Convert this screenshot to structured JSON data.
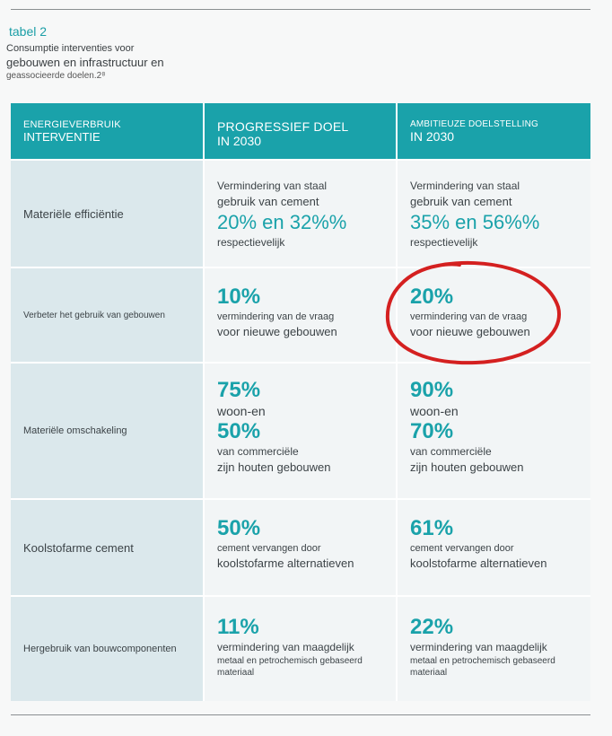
{
  "table_label": "tabel 2",
  "caption": {
    "line1": "Consumptie interventies voor",
    "line2": "gebouwen en infrastructuur en",
    "line3": "geassocieerde doelen.2⁸"
  },
  "header": {
    "col1_line1": "ENERGIEVERBRUIK",
    "col1_line2": "INTERVENTIE",
    "col2_line1": "PROGRESSIEF DOEL",
    "col2_line2": "IN 2030",
    "col3_line1": "AMBITIEUZE DOELSTELLING",
    "col3_line2": "IN 2030"
  },
  "rows": [
    {
      "label": "Materiële efficiëntie",
      "progressive": {
        "l1": "Vermindering van staal",
        "l2": "gebruik van cement",
        "val": "20% en 32%%",
        "l3": "respectievelijk"
      },
      "ambitious": {
        "l1": "Vermindering van staal",
        "l2": "gebruik van cement",
        "val": "35% en 56%%",
        "l3": "respectievelijk"
      }
    },
    {
      "label": "Verbeter het gebruik van gebouwen",
      "progressive": {
        "val": "10%",
        "l1": "vermindering van de vraag",
        "l2": "voor nieuwe gebouwen"
      },
      "ambitious": {
        "val": "20%",
        "l1": "vermindering van de vraag",
        "l2": "voor nieuwe gebouwen"
      }
    },
    {
      "label": "Materiële omschakeling",
      "progressive": {
        "val1": "75%",
        "l1": "woon-en",
        "val2": "50%",
        "l2": "van commerciële",
        "l3": "zijn houten gebouwen"
      },
      "ambitious": {
        "val1": "90%",
        "l1": "woon-en",
        "val2": "70%",
        "l2": "van commerciële",
        "l3": "zijn houten gebouwen"
      }
    },
    {
      "label": "Koolstofarme cement",
      "progressive": {
        "val": "50%",
        "l1": "cement vervangen door",
        "l2": "koolstofarme alternatieven"
      },
      "ambitious": {
        "val": "61%",
        "l1": "cement vervangen door",
        "l2": "koolstofarme alternatieven"
      }
    },
    {
      "label": "Hergebruik van bouwcomponenten",
      "progressive": {
        "val": "11%",
        "l1": "vermindering van maagdelijk",
        "l2": "metaal en petrochemisch gebaseerd",
        "l3": "materiaal"
      },
      "ambitious": {
        "val": "22%",
        "l1": "vermindering van maagdelijk",
        "l2": "metaal en petrochemisch gebaseerd",
        "l3": "materiaal"
      }
    }
  ],
  "annotation_color": "#d42020",
  "accent_color": "#1aa2aa"
}
